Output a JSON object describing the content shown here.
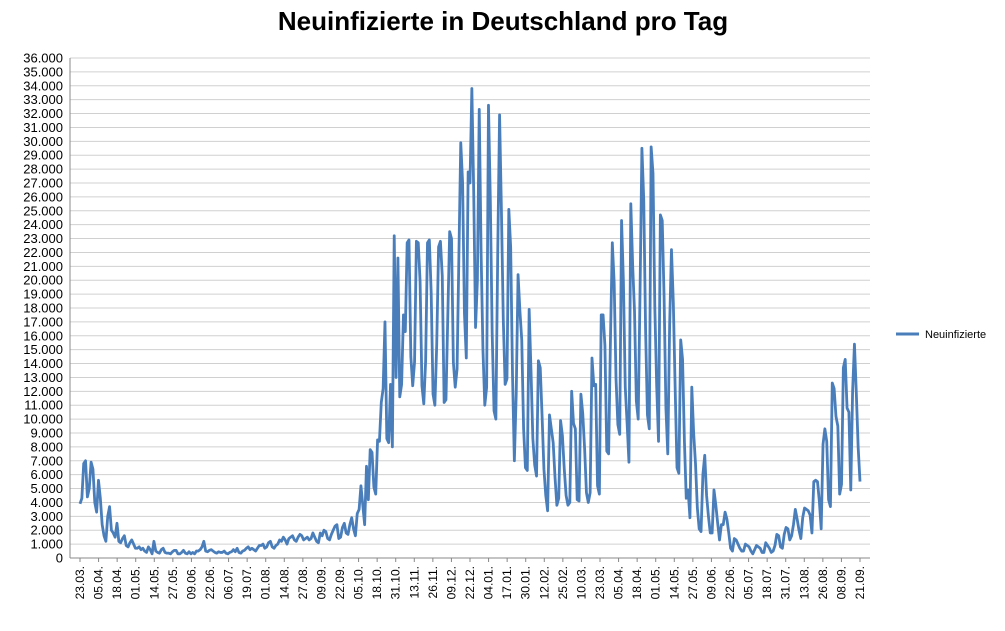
{
  "chart_data": {
    "type": "line",
    "title": "Neuinfizierte in Deutschland pro Tag",
    "xlabel": "",
    "ylabel": "",
    "ylim": [
      0,
      36000
    ],
    "y_ticks": [
      "0",
      "1.000",
      "2.000",
      "3.000",
      "4.000",
      "5.000",
      "6.000",
      "7.000",
      "8.000",
      "9.000",
      "10.000",
      "11.000",
      "12.000",
      "13.000",
      "14.000",
      "15.000",
      "16.000",
      "17.000",
      "18.000",
      "19.000",
      "20.000",
      "21.000",
      "22.000",
      "23.000",
      "24.000",
      "25.000",
      "26.000",
      "27.000",
      "28.000",
      "29.000",
      "30.000",
      "31.000",
      "32.000",
      "33.000",
      "34.000",
      "35.000",
      "36.000"
    ],
    "x_ticks": [
      "23.03.",
      "05.04.",
      "18.04.",
      "01.05.",
      "14.05.",
      "27.05.",
      "09.06.",
      "22.06.",
      "06.07.",
      "19.07.",
      "01.08.",
      "14.08.",
      "27.08.",
      "09.09.",
      "22.09.",
      "05.10.",
      "18.10.",
      "31.10.",
      "13.11.",
      "26.11.",
      "09.12.",
      "22.12.",
      "04.01.",
      "17.01.",
      "30.01.",
      "12.02.",
      "25.02.",
      "10.03.",
      "23.03.",
      "05.04.",
      "18.04.",
      "01.05.",
      "14.05.",
      "27.05.",
      "09.06.",
      "22.06.",
      "05.07.",
      "18.07.",
      "31.07.",
      "13.08.",
      "26.08.",
      "08.09.",
      "21.09."
    ],
    "grid": true,
    "legend_position": "right",
    "series": [
      {
        "name": "Neuinfizierte",
        "color": "#4a7ebb",
        "values": [
          3900,
          4300,
          6800,
          7000,
          4400,
          5000,
          6900,
          6400,
          4000,
          3300,
          5600,
          4300,
          2400,
          1600,
          1200,
          3000,
          3700,
          2000,
          1800,
          1500,
          2500,
          1200,
          1100,
          1400,
          1600,
          900,
          800,
          1100,
          1300,
          1000,
          700,
          700,
          800,
          600,
          700,
          500,
          400,
          800,
          600,
          300,
          1200,
          500,
          400,
          350,
          600,
          700,
          400,
          350,
          350,
          300,
          450,
          550,
          550,
          300,
          300,
          400,
          550,
          350,
          300,
          450,
          300,
          400,
          300,
          500,
          500,
          600,
          800,
          1200,
          500,
          450,
          550,
          600,
          500,
          400,
          350,
          450,
          400,
          400,
          500,
          350,
          300,
          400,
          450,
          600,
          450,
          700,
          400,
          350,
          500,
          550,
          700,
          800,
          600,
          700,
          600,
          500,
          700,
          900,
          900,
          1000,
          700,
          800,
          1100,
          1200,
          800,
          700,
          900,
          1000,
          1300,
          1200,
          1500,
          1300,
          1000,
          1400,
          1500,
          1600,
          1300,
          1200,
          1500,
          1700,
          1600,
          1300,
          1400,
          1500,
          1300,
          1400,
          1800,
          1500,
          1200,
          1100,
          1800,
          1600,
          2000,
          1900,
          1400,
          1300,
          1700,
          2000,
          2300,
          2400,
          1400,
          1500,
          2200,
          2500,
          1800,
          1700,
          2400,
          2900,
          2100,
          1600,
          3200,
          3500,
          5200,
          3800,
          2400,
          6600,
          4200,
          7800,
          7600,
          5100,
          4600,
          8500,
          8400,
          11200,
          12200,
          17000,
          8600,
          8300,
          12500,
          8000,
          23200,
          13000,
          21600,
          11600,
          12500,
          17500,
          16300,
          22700,
          22900,
          14500,
          12400,
          14100,
          22800,
          22700,
          19900,
          12400,
          11100,
          14200,
          22700,
          22900,
          19100,
          11800,
          11000,
          15400,
          22400,
          22800,
          20300,
          11200,
          11400,
          17500,
          23500,
          23000,
          14100,
          12300,
          13600,
          21800,
          29900,
          27000,
          17600,
          14400,
          27800,
          27000,
          33800,
          26400,
          16600,
          20000,
          32300,
          22000,
          15000,
          11000,
          12300,
          32600,
          25700,
          16200,
          10600,
          10000,
          22000,
          31900,
          25000,
          17200,
          12500,
          12900,
          25100,
          22400,
          13200,
          7000,
          11800,
          20400,
          17800,
          15700,
          9300,
          6500,
          6300,
          17900,
          13500,
          8600,
          6700,
          5900,
          14200,
          13700,
          10200,
          6400,
          4500,
          3400,
          10300,
          9300,
          8300,
          5800,
          3800,
          4300,
          9900,
          8800,
          6400,
          4500,
          3800,
          4000,
          12000,
          9700,
          9300,
          4200,
          4100,
          11800,
          10400,
          7900,
          4700,
          4000,
          4700,
          14400,
          12400,
          12500,
          5200,
          4600,
          17500,
          17500,
          15300,
          7700,
          7500,
          15800,
          22700,
          19800,
          12900,
          9600,
          8900,
          24300,
          19900,
          12300,
          9700,
          6900,
          25500,
          21100,
          17800,
          11300,
          10000,
          19200,
          29500,
          25800,
          16400,
          10300,
          9300,
          29600,
          27700,
          18000,
          12400,
          8400,
          24700,
          24300,
          18800,
          10800,
          7500,
          16700,
          22200,
          18400,
          12200,
          6500,
          6100,
          15700,
          14300,
          8400,
          4300,
          4900,
          2900,
          12300,
          9000,
          6800,
          3600,
          2100,
          1900,
          6000,
          7400,
          4500,
          3000,
          1800,
          1800,
          4900,
          3800,
          2500,
          1300,
          2400,
          2400,
          3300,
          2800,
          1800,
          700,
          500,
          1400,
          1300,
          1000,
          700,
          500,
          500,
          1000,
          900,
          800,
          500,
          300,
          600,
          900,
          800,
          700,
          400,
          400,
          1100,
          900,
          700,
          400,
          500,
          900,
          1700,
          1600,
          800,
          700,
          1700,
          2200,
          2100,
          1300,
          1600,
          2400,
          3500,
          2800,
          2000,
          1400,
          2900,
          3600,
          3500,
          3400,
          3100,
          1800,
          5500,
          5600,
          5500,
          4100,
          2100,
          8200,
          9300,
          8400,
          4200,
          3700,
          12600,
          12200,
          10200,
          9500,
          4600,
          5300,
          13700,
          14300,
          10800,
          10500,
          4900,
          12000,
          15400,
          11900,
          8000,
          5500
        ]
      }
    ]
  }
}
